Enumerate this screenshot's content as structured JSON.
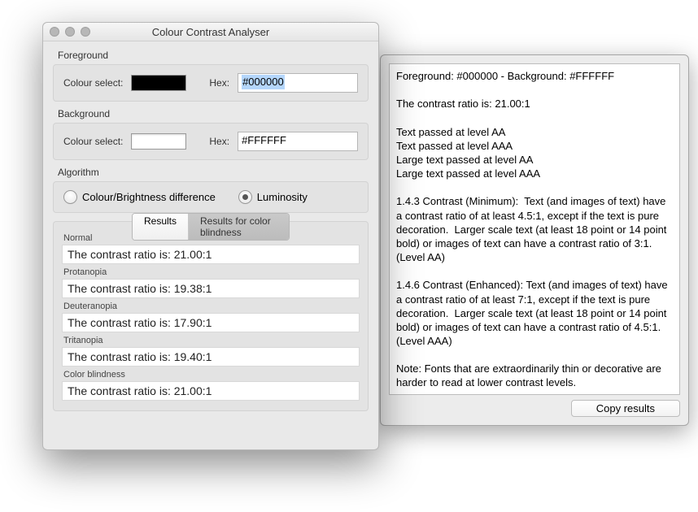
{
  "mainWindow": {
    "title": "Colour Contrast Analyser",
    "foreground": {
      "groupLabel": "Foreground",
      "colourSelectLabel": "Colour select:",
      "swatchColor": "#000000",
      "hexLabel": "Hex:",
      "hexValue": "#000000"
    },
    "background": {
      "groupLabel": "Background",
      "colourSelectLabel": "Colour select:",
      "swatchColor": "#FFFFFF",
      "hexLabel": "Hex:",
      "hexValue": "#FFFFFF"
    },
    "algorithm": {
      "groupLabel": "Algorithm",
      "options": [
        {
          "label": "Colour/Brightness difference",
          "selected": false
        },
        {
          "label": "Luminosity",
          "selected": true
        }
      ]
    },
    "tabs": [
      {
        "label": "Results",
        "active": true
      },
      {
        "label": "Results for color blindness",
        "active": false
      }
    ],
    "results": [
      {
        "label": "Normal",
        "text": "The contrast ratio is: 21.00:1",
        "tint": ""
      },
      {
        "label": "Protanopia",
        "text": "The contrast ratio is: 19.38:1",
        "tint": "tint-pink1"
      },
      {
        "label": "Deuteranopia",
        "text": "The contrast ratio is: 17.90:1",
        "tint": "tint-pink2"
      },
      {
        "label": "Tritanopia",
        "text": "The contrast ratio is: 19.40:1",
        "tint": "tint-pink3"
      },
      {
        "label": "Color blindness",
        "text": "The contrast ratio is: 21.00:1",
        "tint": ""
      }
    ]
  },
  "secondaryWindow": {
    "bodyText": "Foreground: #000000 - Background: #FFFFFF\n\nThe contrast ratio is: 21.00:1\n\nText passed at level AA\nText passed at level AAA\nLarge text passed at level AA\nLarge text passed at level AAA\n\n1.4.3 Contrast (Minimum):  Text (and images of text) have a contrast ratio of at least 4.5:1, except if the text is pure decoration.  Larger scale text (at least 18 point or 14 point bold) or images of text can have a contrast ratio of 3:1. (Level AA)\n\n1.4.6 Contrast (Enhanced): Text (and images of text) have a contrast ratio of at least 7:1, except if the text is pure decoration.  Larger scale text (at least 18 point or 14 point bold) or images of text can have a contrast ratio of 4.5:1. (Level AAA)\n\nNote: Fonts that are extraordinarily thin or decorative are harder to read at lower contrast levels.",
    "copyButton": "Copy results"
  }
}
